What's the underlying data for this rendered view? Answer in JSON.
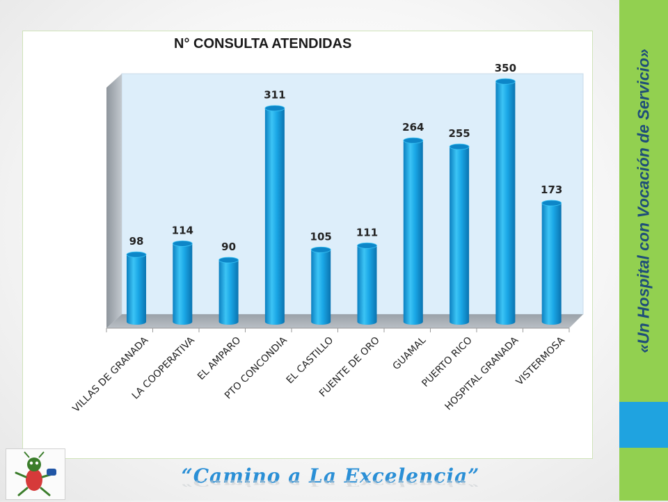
{
  "slogan": "«Un Hospital con Vocación de Servicio»",
  "motto": "“Camino a La Excelencia”",
  "colors": {
    "band_green": "#92d050",
    "band_blue": "#1fa3e0",
    "bar": "#1aa7e6",
    "plot_bg": "#ddeefa",
    "motto": "#2a8fd6"
  },
  "chart_data": {
    "type": "bar",
    "title": "N° CONSULTA ATENDIDAS",
    "categories": [
      "VILLAS DE GRANADA",
      "LA COOPERATIVA",
      "EL AMPARO",
      "PTO CONCONDIA",
      "EL CASTILLO",
      "FUENTE DE ORO",
      "GUAMAL",
      "PUERTO RICO",
      "HOSPITAL GRANADA",
      "VISTERMOSA"
    ],
    "values": [
      98,
      114,
      90,
      311,
      105,
      111,
      264,
      255,
      350,
      173
    ],
    "style": "3d-cylinder",
    "grid": false,
    "legend": "none"
  }
}
